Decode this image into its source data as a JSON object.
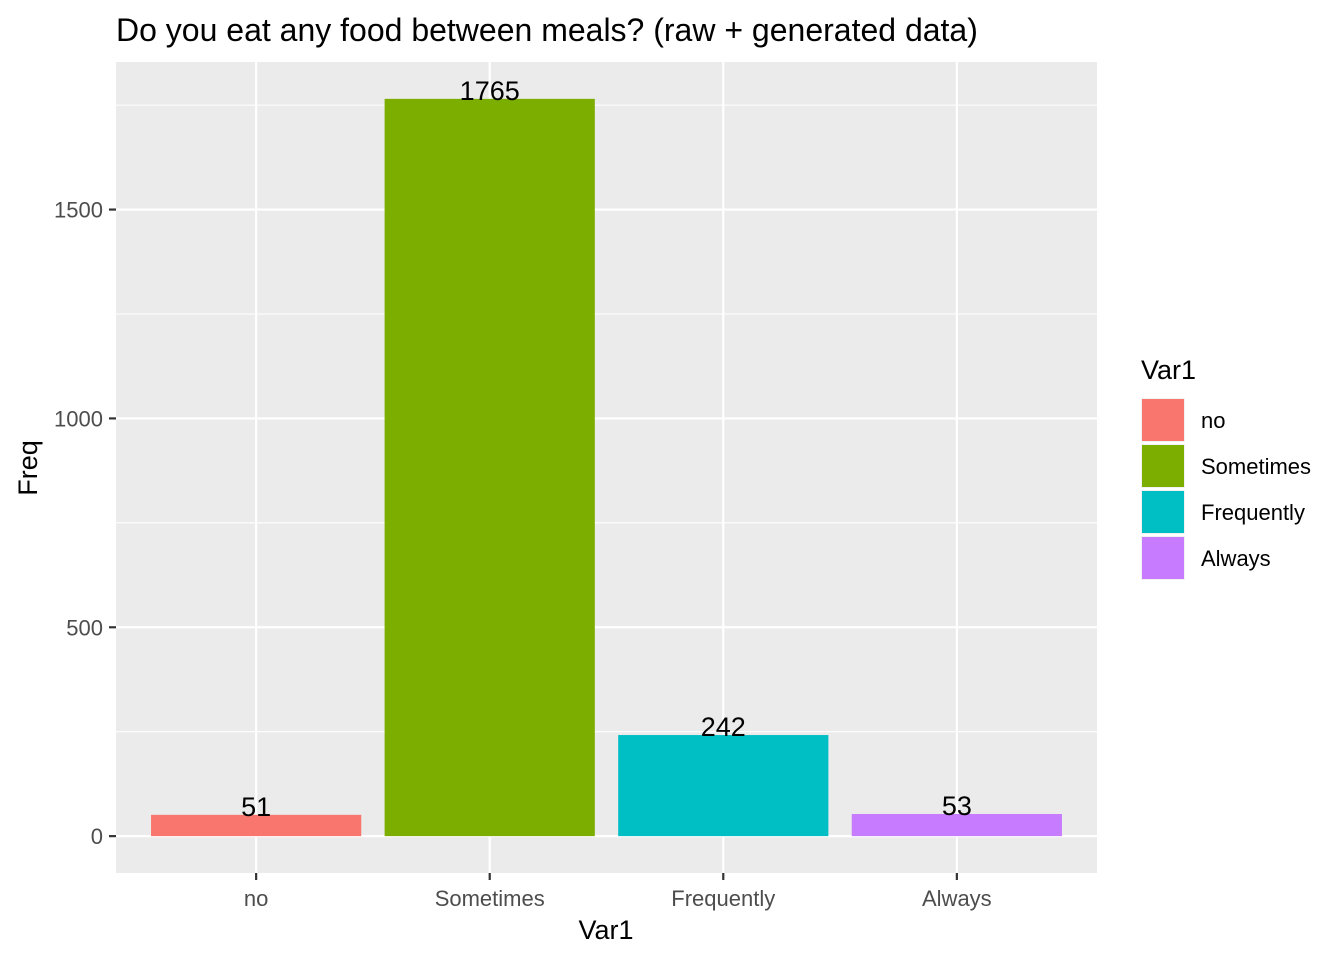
{
  "chart_data": {
    "type": "bar",
    "title": "Do you eat any food between meals? (raw + generated data)",
    "xlabel": "Var1",
    "ylabel": "Freq",
    "categories": [
      "no",
      "Sometimes",
      "Frequently",
      "Always"
    ],
    "values": [
      51,
      1765,
      242,
      53
    ],
    "data_labels": [
      "51",
      "1765",
      "242",
      "53"
    ],
    "colors": [
      "#F8766D",
      "#7CAE00",
      "#00BFC4",
      "#C77CFF"
    ],
    "y_ticks": [
      0,
      500,
      1000,
      1500
    ],
    "y_tick_labels": [
      "0",
      "500",
      "1000",
      "1500"
    ],
    "ylim": [
      -88.25,
      1853.25
    ],
    "grid": true,
    "panel_background": "#EBEBEB",
    "grid_color": "#FFFFFF",
    "legend": {
      "title": "Var1",
      "position": "right",
      "entries": [
        "no",
        "Sometimes",
        "Frequently",
        "Always"
      ]
    }
  }
}
